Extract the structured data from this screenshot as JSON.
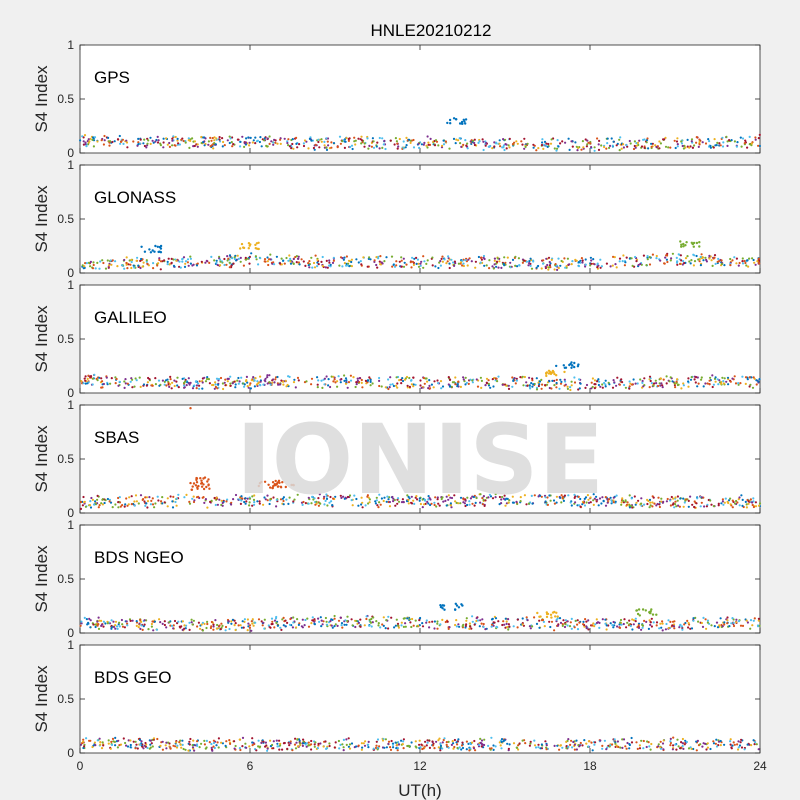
{
  "colors": {
    "background": "#f0f0f0",
    "series": [
      "#0072bd",
      "#d95319",
      "#edb120",
      "#7e2f8e",
      "#77ac30",
      "#4dbeee",
      "#a2142f"
    ]
  },
  "watermark": "IONISE",
  "chart_data": {
    "type": "scatter",
    "title": "HNLE20210212",
    "xlabel": "UT(h)",
    "xlim": [
      0,
      24
    ],
    "xticks": [
      0,
      6,
      12,
      18,
      24
    ],
    "xtick_labels": [
      "0",
      "6",
      "12",
      "18",
      "24"
    ],
    "ylabel": "S4 Index",
    "ylim": [
      0,
      1
    ],
    "yticks": [
      0,
      0.5,
      1
    ],
    "ytick_labels": [
      "0",
      "0.5",
      "1"
    ],
    "grid": false,
    "panels": [
      {
        "label": "GPS",
        "baseline": 0.1,
        "trend": [
          [
            0,
            0.11
          ],
          [
            3,
            0.1
          ],
          [
            6,
            0.1
          ],
          [
            9,
            0.09
          ],
          [
            12,
            0.1
          ],
          [
            15,
            0.09
          ],
          [
            18,
            0.08
          ],
          [
            21,
            0.09
          ],
          [
            24,
            0.11
          ]
        ],
        "features": [
          [
            13.3,
            0.3
          ]
        ]
      },
      {
        "label": "GLONASS",
        "baseline": 0.08,
        "trend": [
          [
            0,
            0.08
          ],
          [
            3,
            0.09
          ],
          [
            6,
            0.12
          ],
          [
            9,
            0.1
          ],
          [
            12,
            0.1
          ],
          [
            15,
            0.1
          ],
          [
            18,
            0.08
          ],
          [
            21,
            0.13
          ],
          [
            24,
            0.1
          ]
        ],
        "features": [
          [
            2.5,
            0.22
          ],
          [
            6.0,
            0.25
          ],
          [
            21.5,
            0.27
          ]
        ]
      },
      {
        "label": "GALILEO",
        "baseline": 0.09,
        "trend": [
          [
            0,
            0.12
          ],
          [
            3,
            0.09
          ],
          [
            6,
            0.1
          ],
          [
            9,
            0.11
          ],
          [
            12,
            0.09
          ],
          [
            15,
            0.1
          ],
          [
            18,
            0.08
          ],
          [
            21,
            0.1
          ],
          [
            24,
            0.11
          ]
        ],
        "features": [
          [
            17.2,
            0.26
          ],
          [
            16.8,
            0.18
          ]
        ]
      },
      {
        "label": "SBAS",
        "baseline": 0.1,
        "trend": [
          [
            0,
            0.1
          ],
          [
            3,
            0.11
          ],
          [
            6,
            0.11
          ],
          [
            9,
            0.12
          ],
          [
            12,
            0.11
          ],
          [
            15,
            0.12
          ],
          [
            18,
            0.11
          ],
          [
            21,
            0.1
          ],
          [
            24,
            0.1
          ]
        ],
        "features": [
          [
            3.9,
            0.97
          ],
          [
            4.3,
            0.3
          ],
          [
            4.2,
            0.24
          ],
          [
            6.7,
            0.26
          ],
          [
            7.2,
            0.27
          ]
        ]
      },
      {
        "label": "BDS NGEO",
        "baseline": 0.08,
        "trend": [
          [
            0,
            0.09
          ],
          [
            3,
            0.07
          ],
          [
            6,
            0.08
          ],
          [
            9,
            0.1
          ],
          [
            12,
            0.1
          ],
          [
            15,
            0.09
          ],
          [
            18,
            0.08
          ],
          [
            21,
            0.08
          ],
          [
            24,
            0.1
          ]
        ],
        "features": [
          [
            13.1,
            0.24
          ],
          [
            16.5,
            0.17
          ],
          [
            20.0,
            0.19
          ]
        ]
      },
      {
        "label": "BDS GEO",
        "baseline": 0.08,
        "trend": [
          [
            0,
            0.08
          ],
          [
            6,
            0.08
          ],
          [
            12,
            0.08
          ],
          [
            18,
            0.08
          ],
          [
            24,
            0.08
          ]
        ],
        "features": []
      }
    ]
  }
}
